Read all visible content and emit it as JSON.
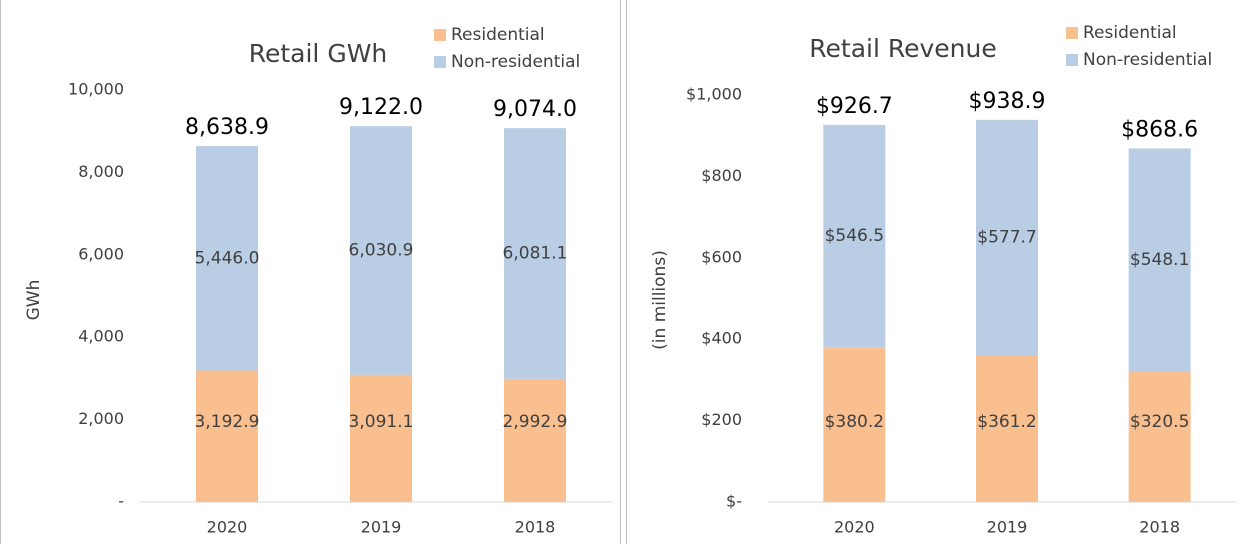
{
  "chart_data": [
    {
      "type": "bar",
      "stacked": true,
      "title": "Retail GWh",
      "y_label": "GWh",
      "categories": [
        "2020",
        "2019",
        "2018"
      ],
      "series": [
        {
          "name": "Residential",
          "color": "#f9bf8f",
          "values": [
            3192.9,
            3091.1,
            2992.9
          ],
          "value_labels": [
            "3,192.9",
            "3,091.1",
            "2,992.9"
          ]
        },
        {
          "name": "Non-residential",
          "color": "#b9cde5",
          "values": [
            5446.0,
            6030.9,
            6081.1
          ],
          "value_labels": [
            "5,446.0",
            "6,030.9",
            "6,081.1"
          ]
        }
      ],
      "totals": [
        8638.9,
        9122.0,
        9074.0
      ],
      "total_labels": [
        "8,638.9",
        "9,122.0",
        "9,074.0"
      ],
      "ylim": [
        0,
        10000
      ],
      "yticks": [
        {
          "value": 0,
          "label": "-"
        },
        {
          "value": 2000,
          "label": "2,000"
        },
        {
          "value": 4000,
          "label": "4,000"
        },
        {
          "value": 6000,
          "label": "6,000"
        },
        {
          "value": 8000,
          "label": "8,000"
        },
        {
          "value": 10000,
          "label": "10,000"
        }
      ],
      "grid": false
    },
    {
      "type": "bar",
      "stacked": true,
      "title": "Retail Revenue",
      "y_label": "(in millions)",
      "categories": [
        "2020",
        "2019",
        "2018"
      ],
      "series": [
        {
          "name": "Residential",
          "color": "#f9bf8f",
          "values": [
            380.2,
            361.2,
            320.5
          ],
          "value_labels": [
            "$380.2",
            "$361.2",
            "$320.5"
          ]
        },
        {
          "name": "Non-residential",
          "color": "#b9cde5",
          "values": [
            546.5,
            577.7,
            548.1
          ],
          "value_labels": [
            "$546.5",
            "$577.7",
            "$548.1"
          ]
        }
      ],
      "totals": [
        926.7,
        938.9,
        868.6
      ],
      "total_labels": [
        "$926.7",
        "$938.9",
        "$868.6"
      ],
      "ylim": [
        0,
        1000
      ],
      "yticks": [
        {
          "value": 0,
          "label": "$-"
        },
        {
          "value": 200,
          "label": "$200"
        },
        {
          "value": 400,
          "label": "$400"
        },
        {
          "value": 600,
          "label": "$600"
        },
        {
          "value": 800,
          "label": "$800"
        },
        {
          "value": 1000,
          "label": "$1,000"
        }
      ],
      "grid": false
    }
  ]
}
